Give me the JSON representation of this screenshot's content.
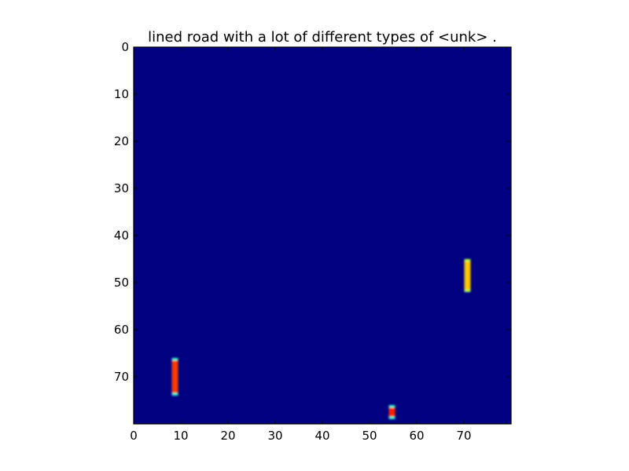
{
  "chart_data": {
    "type": "heatmap",
    "title": "lined road with a lot of different types of <unk> .",
    "xlabel": "",
    "ylabel": "",
    "xlim": [
      0,
      80
    ],
    "ylim": [
      80,
      0
    ],
    "x_ticks": [
      0,
      10,
      20,
      30,
      40,
      50,
      60,
      70
    ],
    "y_ticks": [
      0,
      10,
      20,
      30,
      40,
      50,
      60,
      70
    ],
    "x_tick_labels": [
      "0",
      "10",
      "20",
      "30",
      "40",
      "50",
      "60",
      "70"
    ],
    "y_tick_labels": [
      "0",
      "10",
      "20",
      "30",
      "40",
      "50",
      "60",
      "70"
    ],
    "grid": false,
    "colormap": "jet",
    "background_value": 0.0,
    "background_color": "#00007f",
    "hotspots": [
      {
        "x": 8,
        "y_start": 66,
        "y_end": 73,
        "value": 0.82,
        "edge_value": 0.42,
        "color": "#ff6a00"
      },
      {
        "x": 70,
        "y_start": 45,
        "y_end": 51,
        "value": 0.68,
        "edge_value": 0.55,
        "color": "#c0ff36"
      },
      {
        "x": 54,
        "y_start": 76,
        "y_end": 78,
        "value": 0.85,
        "edge_value": 0.42,
        "color": "#e03000"
      }
    ]
  }
}
